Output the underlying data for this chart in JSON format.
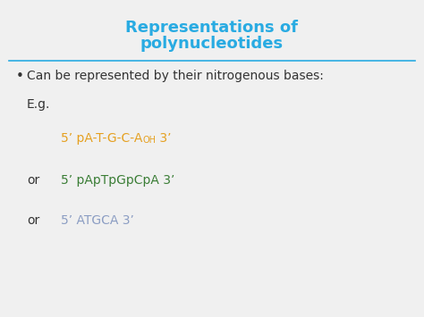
{
  "title_line1": "Representations of",
  "title_line2": "polynucleotides",
  "title_color": "#29ABE2",
  "separator_color": "#29ABE2",
  "background_color": "#F0F0F0",
  "bullet_text": "Can be represented by their nitrogenous bases:",
  "bullet_color": "#333333",
  "eg_text": "E.g.",
  "eg_color": "#333333",
  "line1_main": "5’ pA-T-G-C-A",
  "line1_sub": "OH",
  "line1_end": " 3’",
  "line1_color": "#E5A020",
  "line2_text": "5’ pApTpGpCpA 3’",
  "line2_color": "#3A7D35",
  "line3_text": "5’ ATGCA 3’",
  "line3_color": "#8B9DC3",
  "or_color": "#333333",
  "figsize": [
    4.74,
    3.55
  ],
  "dpi": 100
}
